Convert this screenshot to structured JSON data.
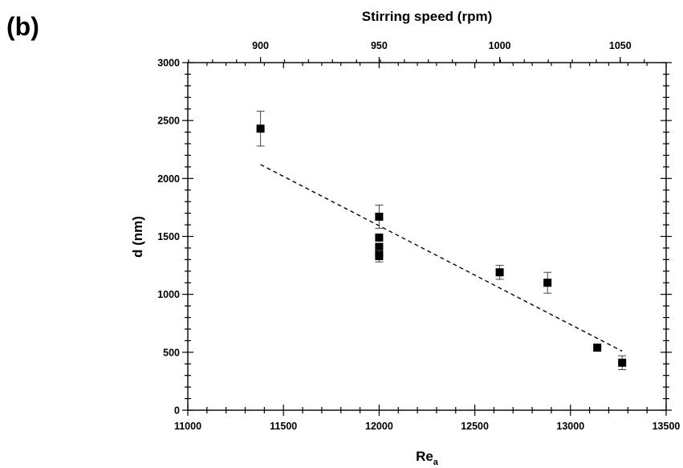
{
  "panel_label": "(b)",
  "chart_data": {
    "type": "scatter",
    "xlabel": "Re",
    "xlabel_subscript": "a",
    "ylabel": "d (nm)",
    "x2label": "Stirring speed (rpm)",
    "xlim": [
      11000,
      13500
    ],
    "ylim": [
      0,
      3000
    ],
    "x_ticks": [
      "11000",
      "11500",
      "12000",
      "12500",
      "13000",
      "13500"
    ],
    "y_ticks": [
      "0",
      "500",
      "1000",
      "1500",
      "2000",
      "2500",
      "3000"
    ],
    "x2_ticks": [
      "900",
      "950",
      "1000",
      "1050"
    ],
    "x2_tick_positions_re": [
      11380,
      12000,
      12630,
      13260
    ],
    "grid": false,
    "series": [
      {
        "points": [
          {
            "x": 11380,
            "y": 2430,
            "err": 150
          },
          {
            "x": 12000,
            "y": 1670,
            "err": 100
          },
          {
            "x": 12000,
            "y": 1490,
            "err": 0
          },
          {
            "x": 12000,
            "y": 1410,
            "err": 0
          },
          {
            "x": 12000,
            "y": 1360,
            "err": 0
          },
          {
            "x": 12000,
            "y": 1330,
            "err": 50
          },
          {
            "x": 12630,
            "y": 1190,
            "err": 60
          },
          {
            "x": 12880,
            "y": 1100,
            "err": 90
          },
          {
            "x": 13140,
            "y": 540,
            "err": 0
          },
          {
            "x": 13270,
            "y": 410,
            "err": 60
          }
        ]
      }
    ],
    "fit_line": {
      "style": "dashed",
      "x": [
        11380,
        13270
      ],
      "y": [
        2120,
        510
      ]
    }
  }
}
